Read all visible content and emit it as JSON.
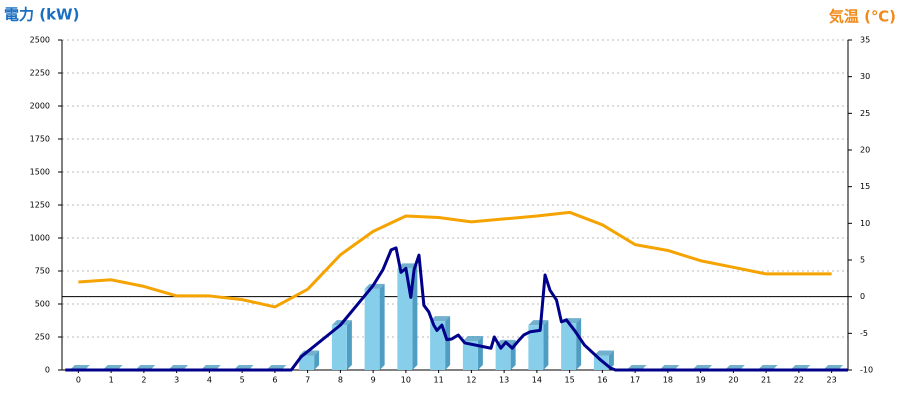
{
  "chart_data": {
    "type": "combo",
    "y_title": "電力 (kW)",
    "y2_title": "気温 (℃)",
    "y_title_color": "#1a6fc0",
    "y2_title_color": "#f08a1c",
    "categories": [
      "0",
      "1",
      "2",
      "3",
      "4",
      "5",
      "6",
      "7",
      "8",
      "9",
      "10",
      "11",
      "12",
      "13",
      "14",
      "15",
      "16",
      "17",
      "18",
      "19",
      "20",
      "21",
      "22",
      "23"
    ],
    "xlim": [
      -0.5,
      23.5
    ],
    "ylim": [
      0,
      2500
    ],
    "yticks": [
      0,
      250,
      500,
      750,
      1000,
      1250,
      1500,
      1750,
      2000,
      2250,
      2500
    ],
    "y2lim": [
      -10,
      35
    ],
    "y2ticks": [
      -10,
      -5,
      0,
      5,
      10,
      15,
      20,
      25,
      30,
      35
    ],
    "y2_reference": 0,
    "grid": true,
    "series": [
      {
        "type": "bar",
        "color": "#87ceeb",
        "side_color": "#4f9dc2",
        "values": [
          0,
          0,
          0,
          0,
          0,
          0,
          0,
          110,
          340,
          615,
          770,
          370,
          220,
          190,
          340,
          355,
          110,
          0,
          0,
          0,
          0,
          0,
          0,
          0
        ]
      },
      {
        "type": "line",
        "color": "#00008b",
        "x": [
          -0.4,
          6.5,
          6.8,
          8.0,
          9.0,
          9.3,
          9.55,
          9.7,
          9.85,
          10.0,
          10.15,
          10.25,
          10.4,
          10.55,
          10.7,
          10.85,
          10.95,
          11.1,
          11.25,
          11.4,
          11.6,
          11.8,
          12.3,
          12.6,
          12.7,
          12.9,
          13.05,
          13.25,
          13.45,
          13.6,
          13.8,
          14.1,
          14.25,
          14.4,
          14.6,
          14.75,
          14.9,
          15.15,
          15.45,
          15.95,
          16.25,
          16.4,
          23.5
        ],
        "values": [
          0,
          0,
          100,
          340,
          640,
          760,
          910,
          925,
          740,
          770,
          550,
          760,
          870,
          490,
          440,
          340,
          300,
          340,
          230,
          235,
          265,
          205,
          180,
          165,
          250,
          165,
          210,
          165,
          225,
          265,
          290,
          300,
          720,
          605,
          530,
          365,
          380,
          300,
          190,
          75,
          15,
          0,
          0
        ]
      },
      {
        "type": "line",
        "axis": "y2",
        "color": "#f5a300",
        "values": [
          2.0,
          2.3,
          1.4,
          0.1,
          0.1,
          -0.4,
          -1.4,
          1.0,
          5.7,
          8.9,
          11.0,
          10.8,
          10.2,
          10.6,
          11.0,
          11.5,
          9.8,
          7.1,
          6.3,
          4.9,
          4.0,
          3.1,
          3.1,
          3.1
        ]
      }
    ]
  }
}
